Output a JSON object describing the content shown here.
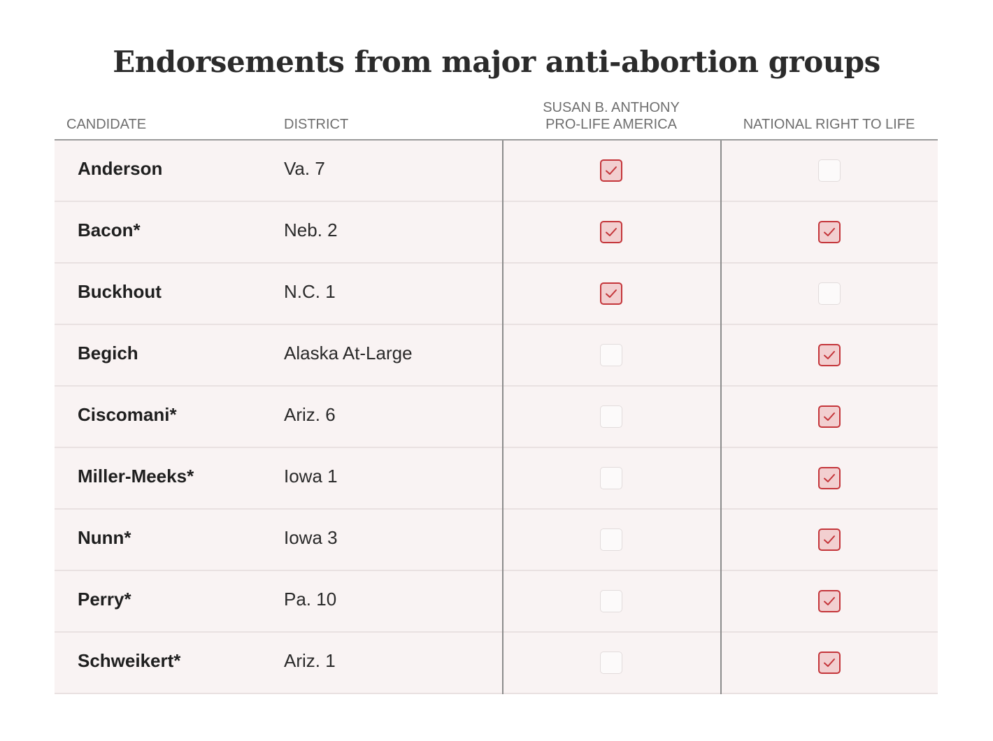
{
  "chart_data": {
    "type": "table",
    "title": "Endorsements from major anti-abortion groups",
    "columns": {
      "candidate": "CANDIDATE",
      "district": "DISTRICT",
      "sba_line1": "SUSAN B. ANTHONY",
      "sba_line2": "PRO-LIFE AMERICA",
      "nrl": "NATIONAL RIGHT TO LIFE"
    },
    "rows": [
      {
        "candidate": "Anderson",
        "district": "Va. 7",
        "sba": true,
        "nrl": false
      },
      {
        "candidate": "Bacon*",
        "district": "Neb. 2",
        "sba": true,
        "nrl": true
      },
      {
        "candidate": "Buckhout",
        "district": "N.C. 1",
        "sba": true,
        "nrl": false
      },
      {
        "candidate": "Begich",
        "district": "Alaska At-Large",
        "sba": false,
        "nrl": true
      },
      {
        "candidate": "Ciscomani*",
        "district": "Ariz. 6",
        "sba": false,
        "nrl": true
      },
      {
        "candidate": "Miller-Meeks*",
        "district": "Iowa 1",
        "sba": false,
        "nrl": true
      },
      {
        "candidate": "Nunn*",
        "district": "Iowa 3",
        "sba": false,
        "nrl": true
      },
      {
        "candidate": "Perry*",
        "district": "Pa. 10",
        "sba": false,
        "nrl": true
      },
      {
        "candidate": "Schweikert*",
        "district": "Ariz. 1",
        "sba": false,
        "nrl": true
      }
    ],
    "colors": {
      "check_border": "#c4353a",
      "check_fill": "#f2cfd0",
      "row_background": "#f9f3f3"
    },
    "icons": {
      "checked": "checked-box-icon",
      "unchecked": "empty-box-icon"
    }
  }
}
